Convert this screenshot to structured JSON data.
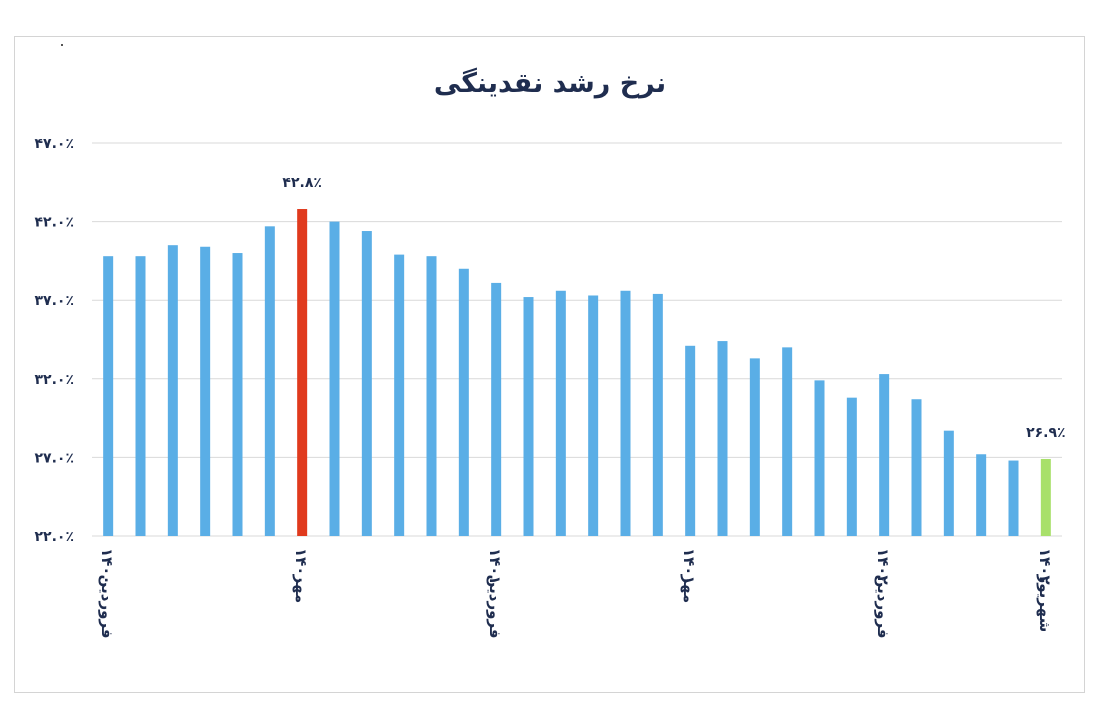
{
  "chart_data": {
    "type": "bar",
    "title": "نرخ رشد نقدینگی",
    "xlabel": "",
    "ylabel": "",
    "ylim": [
      22,
      47
    ],
    "yticks": [
      {
        "value": 47,
        "label": "۴۷.۰٪"
      },
      {
        "value": 42,
        "label": "۴۲.۰٪"
      },
      {
        "value": 37,
        "label": "۳۷.۰٪"
      },
      {
        "value": 32,
        "label": "۳۲.۰٪"
      },
      {
        "value": 27,
        "label": "۲۷.۰٪"
      },
      {
        "value": 22,
        "label": "۲۲.۰٪"
      }
    ],
    "values": [
      39.8,
      39.8,
      40.5,
      40.4,
      40.0,
      41.7,
      42.8,
      42.0,
      41.4,
      39.9,
      39.8,
      39.0,
      38.1,
      37.2,
      37.6,
      37.3,
      37.6,
      37.4,
      34.1,
      34.4,
      33.3,
      34.0,
      31.9,
      30.8,
      32.3,
      30.7,
      28.7,
      27.2,
      26.8,
      26.9
    ],
    "highlight": {
      "max_index": 6,
      "last_index": 29
    },
    "colors": {
      "default": "#5aaee6",
      "max": "#e03a1d",
      "last": "#a8e06a",
      "grid": "#d9d9d9",
      "text": "#1f2d4f"
    },
    "data_labels": [
      {
        "index": 6,
        "text": "۴۲.۸٪"
      },
      {
        "index": 29,
        "text": "۲۶.۹٪"
      }
    ],
    "x_ticks": [
      {
        "index": 0,
        "month": "فروردین",
        "year": "۱۴۰۰"
      },
      {
        "index": 6,
        "month": "مهر",
        "year": "۱۴۰۰"
      },
      {
        "index": 12,
        "month": "فروردین",
        "year": "۱۴۰۱"
      },
      {
        "index": 18,
        "month": "مهر",
        "year": "۱۴۰۱"
      },
      {
        "index": 24,
        "month": "فروردین",
        "year": "۱۴۰۲"
      },
      {
        "index": 29,
        "month": "شهریور",
        "year": "۱۴۰۲"
      }
    ],
    "grid": true,
    "legend": "none"
  }
}
